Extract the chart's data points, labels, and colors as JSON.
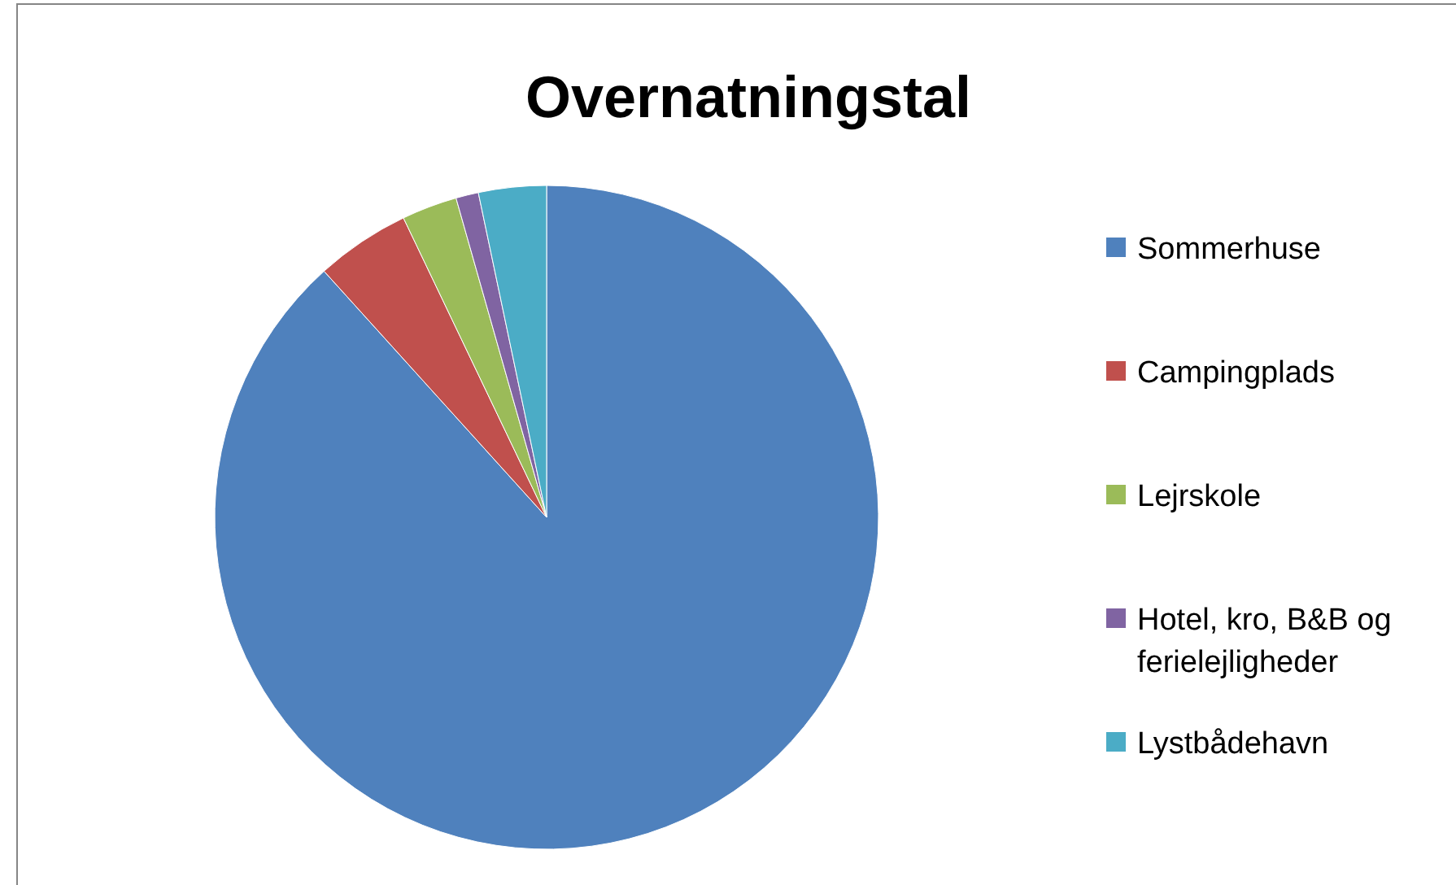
{
  "chart_data": {
    "type": "pie",
    "title": "Overnatningstal",
    "categories": [
      "Sommerhuse",
      "Campingplads",
      "Lejrskole",
      "Hotel, kro, B&B og ferielejligheder",
      "Lystbådehavn"
    ],
    "values": [
      88.3,
      4.6,
      2.7,
      1.1,
      3.3
    ],
    "colors": [
      "#4f81bd",
      "#c0504d",
      "#9bbb59",
      "#8064a2",
      "#4bacc6"
    ],
    "legend": "right"
  }
}
